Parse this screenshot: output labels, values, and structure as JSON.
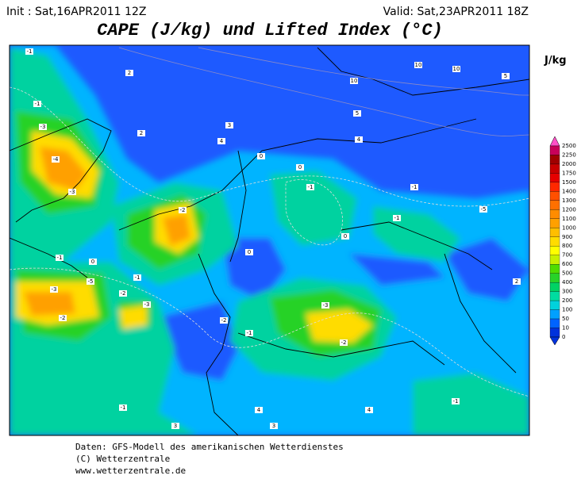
{
  "header": {
    "init": "Init : Sat,16APR2011 12Z",
    "valid": "Valid: Sat,23APR2011 18Z",
    "title": "CAPE (J/kg) und Lifted Index (°C)"
  },
  "legend": {
    "unit": "J/kg",
    "levels": [
      2500,
      2250,
      2000,
      1750,
      1500,
      1400,
      1300,
      1200,
      1100,
      1000,
      900,
      800,
      700,
      600,
      500,
      400,
      300,
      200,
      100,
      50,
      10,
      0
    ],
    "colors": [
      "#ff50c8",
      "#c8005a",
      "#a00000",
      "#c80000",
      "#e60000",
      "#ff2800",
      "#ff5000",
      "#ff7000",
      "#ff8c00",
      "#ffa000",
      "#ffbe00",
      "#ffdc00",
      "#ffff00",
      "#c8f000",
      "#50dc00",
      "#28d228",
      "#00d264",
      "#00dca0",
      "#00d2dc",
      "#00a0ff",
      "#0064ff",
      "#0032dc"
    ]
  },
  "map": {
    "contour_labels": [
      "-1",
      "2",
      "-1",
      "-3",
      "-4",
      "-3",
      "2",
      "3",
      "4",
      "10",
      "10",
      "10",
      "5",
      "5",
      "4",
      "0",
      "0",
      "-1",
      "-1",
      "-5",
      "-1",
      "0",
      "0",
      "-2",
      "-1",
      "0",
      "-5",
      "-3",
      "-1",
      "-2",
      "-3",
      "-2",
      "-3",
      "-2",
      "-2",
      "-1",
      "2",
      "-1",
      "-1",
      "4",
      "4",
      "3",
      "3"
    ]
  },
  "footer": [
    "Daten: GFS-Modell des amerikanischen Wetterdienstes",
    "(C) Wetterzentrale",
    "www.wetterzentrale.de"
  ]
}
